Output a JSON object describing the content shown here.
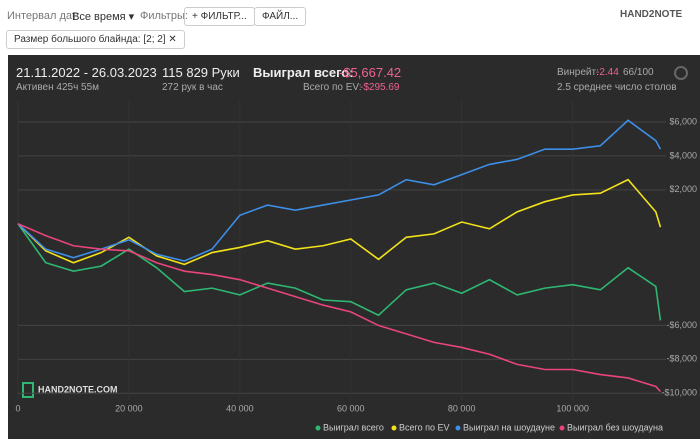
{
  "toolbar": {
    "date_label": "Интервал дат:",
    "date_value": "Все время",
    "filters_label": "Фильтры:",
    "filter_button": "ФИЛЬТР...",
    "file_button": "ФАЙЛ...",
    "logo": "HAND2NOTE"
  },
  "filter_chip": "Размер большого блайнда: [2; 2]",
  "stats": {
    "date_range": "21.11.2022 - 26.03.2023",
    "active": "Активен 425ч 55м",
    "hands": "115 829 Руки",
    "hands_per_hour": "272 рук в час",
    "won_label": "Выиграл всего:",
    "won_value": "-$5,667.42",
    "ev_label": "Всего по EV:",
    "ev_value": "-$295.69",
    "winrate_label": "Винрейт:",
    "winrate_value": "-2.44",
    "winrate_ratio": "66/100",
    "tables": "2.5 среднее число столов"
  },
  "chart_data": {
    "type": "line",
    "watermark": "HAND2NOTE.COM",
    "x": [
      0,
      5000,
      10000,
      15000,
      20000,
      25000,
      30000,
      35000,
      40000,
      45000,
      50000,
      55000,
      60000,
      65000,
      70000,
      75000,
      80000,
      85000,
      90000,
      95000,
      100000,
      105000,
      110000,
      115000,
      115829
    ],
    "xlim": [
      0,
      119000
    ],
    "xticks": [
      0,
      {
        "value": 20000,
        "label": "20 000"
      },
      {
        "value": 40000,
        "label": "40 000"
      },
      {
        "value": 60000,
        "label": "60 000"
      },
      {
        "value": 80000,
        "label": "80 000"
      },
      {
        "value": 100000,
        "label": "100 000"
      }
    ],
    "ylim": [
      -10400,
      7300
    ],
    "yticks": [
      {
        "value": 6000,
        "label": "$6,000"
      },
      {
        "value": 4000,
        "label": "$4,000"
      },
      {
        "value": 2000,
        "label": "$2,000"
      },
      {
        "value": -6000,
        "label": "-$6,000"
      },
      {
        "value": -8000,
        "label": "-$8,000"
      },
      {
        "value": -10000,
        "label": "-$10,000"
      }
    ],
    "grid": true,
    "series": [
      {
        "name": "Выиграл всего",
        "color": "#2eb872",
        "values": [
          0,
          -2300,
          -2800,
          -2500,
          -1500,
          -2600,
          -4000,
          -3800,
          -4200,
          -3500,
          -3800,
          -4500,
          -4600,
          -5400,
          -3900,
          -3500,
          -4100,
          -3300,
          -4200,
          -3800,
          -3600,
          -3900,
          -2600,
          -3700,
          -5700
        ]
      },
      {
        "name": "Всего по EV",
        "color": "#f2e21a",
        "values": [
          0,
          -1600,
          -2300,
          -1700,
          -800,
          -1900,
          -2400,
          -1700,
          -1400,
          -1000,
          -1500,
          -1300,
          -900,
          -2100,
          -800,
          -600,
          100,
          -300,
          700,
          1300,
          1700,
          1800,
          2600,
          700,
          -200
        ]
      },
      {
        "name": "Выиграл на шоудауне",
        "color": "#3d8ee8",
        "values": [
          0,
          -1500,
          -2000,
          -1500,
          -950,
          -1800,
          -2200,
          -1500,
          500,
          1100,
          800,
          1100,
          1400,
          1700,
          2600,
          2300,
          2900,
          3500,
          3800,
          4400,
          4400,
          4600,
          6100,
          4900,
          4400
        ]
      },
      {
        "name": "Выиграл без шоудауна",
        "color": "#e8457a",
        "values": [
          0,
          -700,
          -1300,
          -1500,
          -1600,
          -2300,
          -2800,
          -3000,
          -3300,
          -3800,
          -4300,
          -4800,
          -5200,
          -6000,
          -6500,
          -7000,
          -7300,
          -7700,
          -8300,
          -8600,
          -8600,
          -8900,
          -9100,
          -9600,
          -9900
        ]
      }
    ]
  }
}
